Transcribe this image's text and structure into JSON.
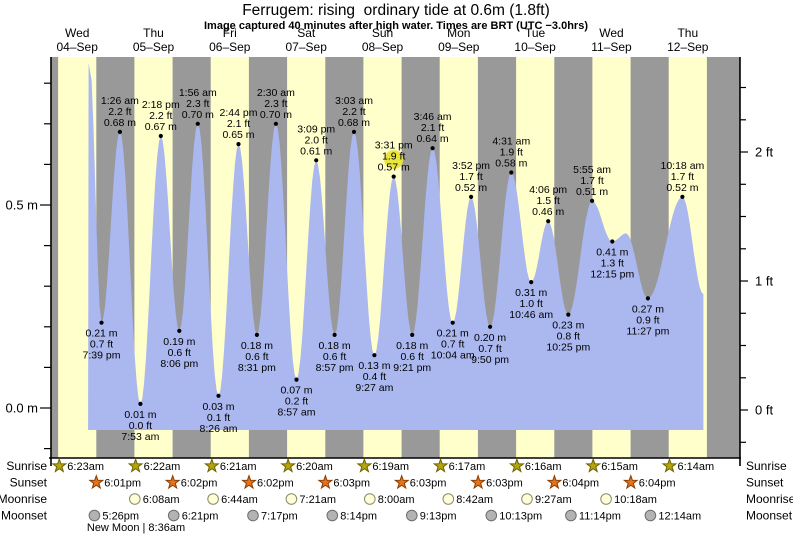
{
  "title": "Ferrugem: rising  ordinary tide at 0.6m (1.8ft)",
  "subtitle": "Image captured 40 minutes after high water. Times are BRT (UTC −3.0hrs)",
  "colors": {
    "day_band": "#ffffcc",
    "night_band": "#999999",
    "tide_fill": "#abb7ef",
    "day_label_red": "#ee1c1c",
    "highlight_circle": "#e8e438",
    "sunrise_star": "#b5a40e",
    "sunrise_star_edge": "#6b6200",
    "sunset_star": "#e2741f",
    "sunset_star_edge": "#8a3c00",
    "moonrise_moon": "#ffffd9",
    "moonrise_moon_edge": "#8a8a66",
    "moonset_moon": "#b3b3b3",
    "moonset_moon_edge": "#6e6e6e"
  },
  "days": [
    {
      "name": "Wed",
      "date": "04–Sep"
    },
    {
      "name": "Thu",
      "date": "05–Sep"
    },
    {
      "name": "Fri",
      "date": "06–Sep"
    },
    {
      "name": "Sat",
      "date": "07–Sep"
    },
    {
      "name": "Sun",
      "date": "08–Sep"
    },
    {
      "name": "Mon",
      "date": "09–Sep"
    },
    {
      "name": "Tue",
      "date": "10–Sep"
    },
    {
      "name": "Wed",
      "date": "11–Sep"
    },
    {
      "name": "Thu",
      "date": "12–Sep"
    }
  ],
  "y_axis_left": {
    "unit": "m",
    "tick_labels": [
      {
        "value": 0.5,
        "label": "0.5 m"
      },
      {
        "value": 0.0,
        "label": "0.0 m"
      }
    ]
  },
  "y_axis_right": {
    "unit": "ft",
    "tick_labels": [
      {
        "value": 2,
        "label": "2 ft"
      },
      {
        "value": 1,
        "label": "1 ft"
      },
      {
        "value": 0,
        "label": "0 ft"
      }
    ]
  },
  "chart_data": {
    "type": "area",
    "title": "Ferrugem: rising  ordinary tide at 0.6m (1.8ft)",
    "x_axis": "time, 04-Sep through 12-Sep (day/night bands, daylight 6am-6pm)",
    "ylim_m": [
      -0.05,
      0.87
    ],
    "extremes": [
      {
        "kind": "low",
        "day": 0,
        "time": "7:39 pm",
        "ft_label": "0.7 ft",
        "m_label": "0.21 m",
        "height_m": 0.21
      },
      {
        "kind": "high",
        "day": 1,
        "time": "1:26 am",
        "ft_label": "2.2 ft",
        "m_label": "0.68 m",
        "height_m": 0.68
      },
      {
        "kind": "low",
        "day": 1,
        "time": "7:53 am",
        "ft_label": "0.0 ft",
        "m_label": "0.01 m",
        "height_m": 0.01
      },
      {
        "kind": "high",
        "day": 1,
        "time": "2:18 pm",
        "ft_label": "2.2 ft",
        "m_label": "0.67 m",
        "height_m": 0.67
      },
      {
        "kind": "low",
        "day": 1,
        "time": "8:06 pm",
        "ft_label": "0.6 ft",
        "m_label": "0.19 m",
        "height_m": 0.19
      },
      {
        "kind": "high",
        "day": 2,
        "time": "1:56 am",
        "ft_label": "2.3 ft",
        "m_label": "0.70 m",
        "height_m": 0.7
      },
      {
        "kind": "low",
        "day": 2,
        "time": "8:26 am",
        "ft_label": "0.1 ft",
        "m_label": "0.03 m",
        "height_m": 0.03
      },
      {
        "kind": "high",
        "day": 2,
        "time": "2:44 pm",
        "ft_label": "2.1 ft",
        "m_label": "0.65 m",
        "height_m": 0.65
      },
      {
        "kind": "low",
        "day": 2,
        "time": "8:31 pm",
        "ft_label": "0.6 ft",
        "m_label": "0.18 m",
        "height_m": 0.18
      },
      {
        "kind": "high",
        "day": 3,
        "time": "2:30 am",
        "ft_label": "2.3 ft",
        "m_label": "0.70 m",
        "height_m": 0.7
      },
      {
        "kind": "low",
        "day": 3,
        "time": "8:57 am",
        "ft_label": "0.2 ft",
        "m_label": "0.07 m",
        "height_m": 0.07
      },
      {
        "kind": "high",
        "day": 3,
        "time": "3:09 pm",
        "ft_label": "2.0 ft",
        "m_label": "0.61 m",
        "height_m": 0.61
      },
      {
        "kind": "low",
        "day": 3,
        "time": "8:57 pm",
        "ft_label": "0.6 ft",
        "m_label": "0.18 m",
        "height_m": 0.18
      },
      {
        "kind": "high",
        "day": 4,
        "time": "3:03 am",
        "ft_label": "2.2 ft",
        "m_label": "0.68 m",
        "height_m": 0.68
      },
      {
        "kind": "low",
        "day": 4,
        "time": "9:27 am",
        "ft_label": "0.4 ft",
        "m_label": "0.13 m",
        "height_m": 0.13
      },
      {
        "kind": "high",
        "day": 4,
        "time": "3:31 pm",
        "ft_label": "1.9 ft",
        "m_label": "0.57 m",
        "height_m": 0.57,
        "highlighted": true
      },
      {
        "kind": "low",
        "day": 4,
        "time": "9:21 pm",
        "ft_label": "0.6 ft",
        "m_label": "0.18 m",
        "height_m": 0.18
      },
      {
        "kind": "high",
        "day": 5,
        "time": "3:46 am",
        "ft_label": "2.1 ft",
        "m_label": "0.64 m",
        "height_m": 0.64
      },
      {
        "kind": "low",
        "day": 5,
        "time": "10:04 am",
        "ft_label": "0.7 ft",
        "m_label": "0.21 m",
        "height_m": 0.21
      },
      {
        "kind": "high",
        "day": 5,
        "time": "3:52 pm",
        "ft_label": "1.7 ft",
        "m_label": "0.52 m",
        "height_m": 0.52
      },
      {
        "kind": "low",
        "day": 5,
        "time": "9:50 pm",
        "ft_label": "0.7 ft",
        "m_label": "0.20 m",
        "height_m": 0.2
      },
      {
        "kind": "high",
        "day": 6,
        "time": "4:31 am",
        "ft_label": "1.9 ft",
        "m_label": "0.58 m",
        "height_m": 0.58
      },
      {
        "kind": "low",
        "day": 6,
        "time": "10:46 am",
        "ft_label": "1.0 ft",
        "m_label": "0.31 m",
        "height_m": 0.31
      },
      {
        "kind": "high",
        "day": 6,
        "time": "4:06 pm",
        "ft_label": "1.5 ft",
        "m_label": "0.46 m",
        "height_m": 0.46
      },
      {
        "kind": "low",
        "day": 6,
        "time": "10:25 pm",
        "ft_label": "0.8 ft",
        "m_label": "0.23 m",
        "height_m": 0.23
      },
      {
        "kind": "high",
        "day": 7,
        "time": "5:55 am",
        "ft_label": "1.7 ft",
        "m_label": "0.51 m",
        "height_m": 0.51
      },
      {
        "kind": "low",
        "day": 7,
        "time": "12:15 pm",
        "ft_label": "1.3 ft",
        "m_label": "0.41 m",
        "height_m": 0.41
      },
      {
        "kind": "low",
        "day": 7,
        "time": "11:27 pm",
        "ft_label": "0.9 ft",
        "m_label": "0.27 m",
        "height_m": 0.27
      },
      {
        "kind": "high",
        "day": 8,
        "time": "10:18 am",
        "ft_label": "1.7 ft",
        "m_label": "0.52 m",
        "height_m": 0.52
      }
    ],
    "shape_points": [
      {
        "day": 0,
        "hour": 15.9,
        "height_m": 0.85,
        "note": "clipped narrow spike at curve start"
      },
      {
        "day": 7,
        "hour": 16.6,
        "height_m": 0.43,
        "note": "unlabeled secondary bump"
      },
      {
        "day": 8,
        "hour": 16.9,
        "height_m": 0.28,
        "note": "curve end, fill cut vertically"
      }
    ]
  },
  "astro": {
    "rows": [
      {
        "label": "Sunrise",
        "icon": "sunrise-star",
        "entries": [
          {
            "day": 0,
            "time": "6:23am"
          },
          {
            "day": 1,
            "time": "6:22am"
          },
          {
            "day": 2,
            "time": "6:21am"
          },
          {
            "day": 3,
            "time": "6:20am"
          },
          {
            "day": 4,
            "time": "6:19am"
          },
          {
            "day": 5,
            "time": "6:17am"
          },
          {
            "day": 6,
            "time": "6:16am"
          },
          {
            "day": 7,
            "time": "6:15am"
          },
          {
            "day": 8,
            "time": "6:14am"
          }
        ]
      },
      {
        "label": "Sunset",
        "icon": "sunset-star",
        "entries": [
          {
            "day": 0,
            "time": "6:01pm"
          },
          {
            "day": 1,
            "time": "6:02pm"
          },
          {
            "day": 2,
            "time": "6:02pm"
          },
          {
            "day": 3,
            "time": "6:03pm"
          },
          {
            "day": 4,
            "time": "6:03pm"
          },
          {
            "day": 5,
            "time": "6:03pm"
          },
          {
            "day": 6,
            "time": "6:04pm"
          },
          {
            "day": 7,
            "time": "6:04pm"
          }
        ]
      },
      {
        "label": "Moonrise",
        "icon": "moonrise-circle",
        "entries": [
          {
            "day": 1,
            "time": "6:08am"
          },
          {
            "day": 2,
            "time": "6:44am"
          },
          {
            "day": 3,
            "time": "7:21am"
          },
          {
            "day": 4,
            "time": "8:00am"
          },
          {
            "day": 5,
            "time": "8:42am"
          },
          {
            "day": 6,
            "time": "9:27am"
          },
          {
            "day": 7,
            "time": "10:18am"
          }
        ]
      },
      {
        "label": "Moonset",
        "icon": "moonset-circle",
        "entries": [
          {
            "day": 0,
            "time": "5:26pm"
          },
          {
            "day": 1,
            "time": "6:21pm"
          },
          {
            "day": 2,
            "time": "7:17pm"
          },
          {
            "day": 3,
            "time": "8:14pm"
          },
          {
            "day": 4,
            "time": "9:13pm"
          },
          {
            "day": 5,
            "time": "10:13pm"
          },
          {
            "day": 6,
            "time": "11:14pm"
          },
          {
            "day": 8,
            "time": "12:14am"
          }
        ]
      }
    ],
    "new_moon_note": "New Moon | 8:36am"
  }
}
